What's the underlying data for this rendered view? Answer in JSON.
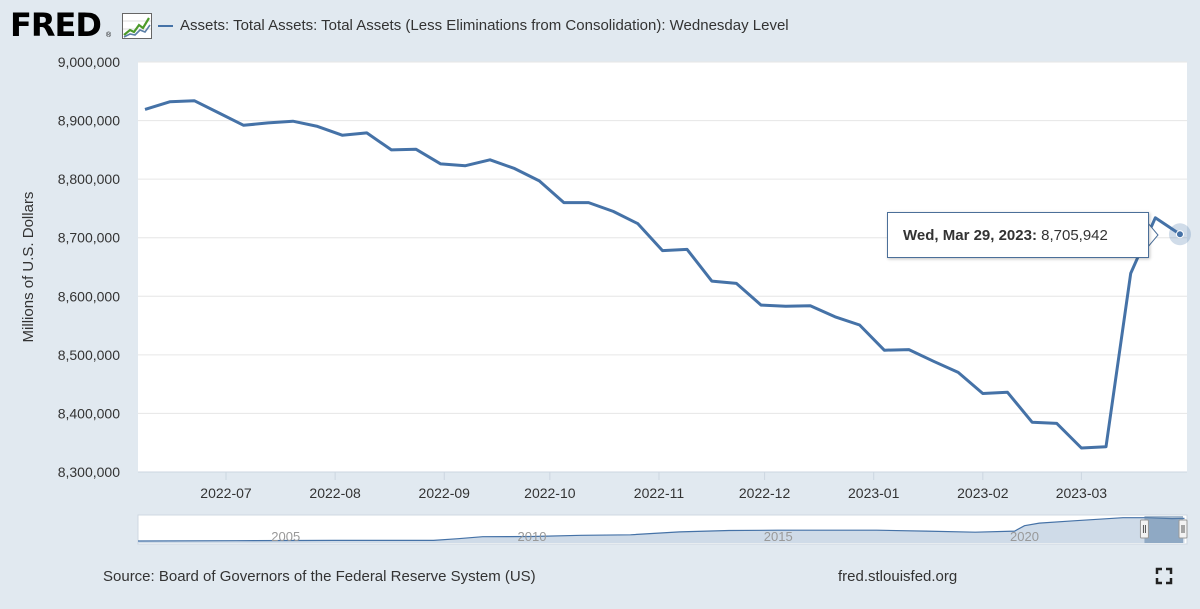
{
  "header": {
    "logo_text": "FRED",
    "logo_reg": "®",
    "legend_label": "Assets: Total Assets: Total Assets (Less Eliminations from Consolidation): Wednesday Level",
    "series_color": "#4572a7"
  },
  "chart_data": {
    "type": "line",
    "title": "Assets: Total Assets: Total Assets (Less Eliminations from Consolidation): Wednesday Level",
    "xlabel": "",
    "ylabel": "Millions of U.S. Dollars",
    "ylim": [
      8300000,
      9000000
    ],
    "y_ticks": [
      "8,300,000",
      "8,400,000",
      "8,500,000",
      "8,600,000",
      "8,700,000",
      "8,800,000",
      "8,900,000",
      "9,000,000"
    ],
    "x_ticks": [
      "2022-07",
      "2022-08",
      "2022-09",
      "2022-10",
      "2022-11",
      "2022-12",
      "2023-01",
      "2023-02",
      "2023-03"
    ],
    "grid": true,
    "series": [
      {
        "name": "Assets: Total Assets: Total Assets (Less Eliminations from Consolidation): Wednesday Level",
        "x": [
          "2022-06-08",
          "2022-06-15",
          "2022-06-22",
          "2022-06-29",
          "2022-07-06",
          "2022-07-13",
          "2022-07-20",
          "2022-07-27",
          "2022-08-03",
          "2022-08-10",
          "2022-08-17",
          "2022-08-24",
          "2022-08-31",
          "2022-09-07",
          "2022-09-14",
          "2022-09-21",
          "2022-09-28",
          "2022-10-05",
          "2022-10-12",
          "2022-10-19",
          "2022-10-26",
          "2022-11-02",
          "2022-11-09",
          "2022-11-16",
          "2022-11-23",
          "2022-11-30",
          "2022-12-07",
          "2022-12-14",
          "2022-12-21",
          "2022-12-28",
          "2023-01-04",
          "2023-01-11",
          "2023-01-18",
          "2023-01-25",
          "2023-02-01",
          "2023-02-08",
          "2023-02-15",
          "2023-02-22",
          "2023-03-01",
          "2023-03-08",
          "2023-03-15",
          "2023-03-22",
          "2023-03-29"
        ],
        "values": [
          8919000,
          8932000,
          8934000,
          8913000,
          8892000,
          8896000,
          8899000,
          8890000,
          8875000,
          8879000,
          8850000,
          8851000,
          8826000,
          8823000,
          8833000,
          8818000,
          8797000,
          8760000,
          8760000,
          8745000,
          8724000,
          8678000,
          8680000,
          8626000,
          8622000,
          8585000,
          8583000,
          8584000,
          8565000,
          8551000,
          8508000,
          8509000,
          8489000,
          8470000,
          8434000,
          8436000,
          8385000,
          8383000,
          8341000,
          8343000,
          8639000,
          8734000,
          8705942
        ]
      }
    ],
    "navigator": {
      "labels": [
        "2005",
        "2010",
        "2015",
        "2020"
      ],
      "x": [
        2002,
        2004,
        2006,
        2008,
        2008.5,
        2009,
        2010,
        2011,
        2012,
        2013,
        2014,
        2015,
        2016,
        2017,
        2018,
        2019,
        2019.8,
        2020,
        2020.3,
        2021,
        2022,
        2022.5,
        2023,
        2023.25
      ],
      "values": [
        0.7,
        0.8,
        0.9,
        0.9,
        1.5,
        2.2,
        2.3,
        2.7,
        2.9,
        3.9,
        4.4,
        4.5,
        4.5,
        4.5,
        4.2,
        3.8,
        4.2,
        6.1,
        7.0,
        7.8,
        8.9,
        8.9,
        8.6,
        8.7
      ],
      "selected_range": [
        "2022-06-08",
        "2023-03-29"
      ]
    },
    "tooltip": {
      "date": "Wed, Mar 29, 2023:",
      "value": "8,705,942"
    }
  },
  "footer": {
    "source": "Source: Board of Governors of the Federal Reserve System (US)",
    "url": "fred.stlouisfed.org"
  }
}
